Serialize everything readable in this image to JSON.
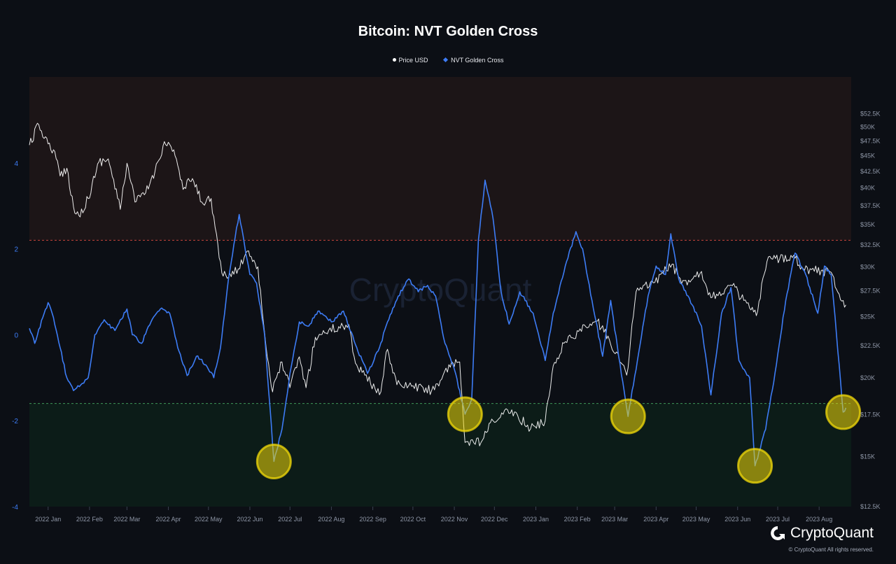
{
  "chart_data": {
    "type": "line",
    "title": "Bitcoin: NVT Golden Cross",
    "legend_placement": "top-center",
    "series": [
      {
        "name": "Price USD",
        "axis": "right",
        "color": "#ffffff",
        "points": [
          [
            "2021-12-18",
            46800
          ],
          [
            "2021-12-25",
            50400
          ],
          [
            "2022-01-01",
            47000
          ],
          [
            "2022-01-05",
            46000
          ],
          [
            "2022-01-10",
            41800
          ],
          [
            "2022-01-15",
            43000
          ],
          [
            "2022-01-21",
            36500
          ],
          [
            "2022-01-24",
            36200
          ],
          [
            "2022-01-31",
            38500
          ],
          [
            "2022-02-08",
            44000
          ],
          [
            "2022-02-15",
            44500
          ],
          [
            "2022-02-24",
            37000
          ],
          [
            "2022-03-01",
            43800
          ],
          [
            "2022-03-07",
            38000
          ],
          [
            "2022-03-15",
            39300
          ],
          [
            "2022-03-22",
            42500
          ],
          [
            "2022-03-29",
            47400
          ],
          [
            "2022-04-05",
            46000
          ],
          [
            "2022-04-12",
            39800
          ],
          [
            "2022-04-19",
            41400
          ],
          [
            "2022-04-26",
            38000
          ],
          [
            "2022-05-03",
            38500
          ],
          [
            "2022-05-09",
            31000
          ],
          [
            "2022-05-12",
            29000
          ],
          [
            "2022-05-20",
            29200
          ],
          [
            "2022-05-31",
            31800
          ],
          [
            "2022-06-07",
            30000
          ],
          [
            "2022-06-13",
            22500
          ],
          [
            "2022-06-18",
            19000
          ],
          [
            "2022-06-25",
            21200
          ],
          [
            "2022-07-01",
            19300
          ],
          [
            "2022-07-08",
            21600
          ],
          [
            "2022-07-13",
            19300
          ],
          [
            "2022-07-20",
            23200
          ],
          [
            "2022-07-30",
            23800
          ],
          [
            "2022-08-14",
            24300
          ],
          [
            "2022-08-19",
            21100
          ],
          [
            "2022-08-26",
            20200
          ],
          [
            "2022-09-06",
            18800
          ],
          [
            "2022-09-12",
            22200
          ],
          [
            "2022-09-19",
            19500
          ],
          [
            "2022-09-30",
            19400
          ],
          [
            "2022-10-15",
            19100
          ],
          [
            "2022-10-29",
            20800
          ],
          [
            "2022-11-05",
            21200
          ],
          [
            "2022-11-09",
            15800
          ],
          [
            "2022-11-21",
            15800
          ],
          [
            "2022-11-30",
            17100
          ],
          [
            "2022-12-14",
            17800
          ],
          [
            "2022-12-28",
            16600
          ],
          [
            "2023-01-08",
            17100
          ],
          [
            "2023-01-14",
            20900
          ],
          [
            "2023-01-22",
            22700
          ],
          [
            "2023-02-02",
            23700
          ],
          [
            "2023-02-16",
            24600
          ],
          [
            "2023-02-25",
            23000
          ],
          [
            "2023-03-10",
            20200
          ],
          [
            "2023-03-17",
            27400
          ],
          [
            "2023-03-30",
            28300
          ],
          [
            "2023-04-13",
            30300
          ],
          [
            "2023-04-20",
            28200
          ],
          [
            "2023-05-05",
            29500
          ],
          [
            "2023-05-12",
            26800
          ],
          [
            "2023-05-28",
            28000
          ],
          [
            "2023-06-10",
            25800
          ],
          [
            "2023-06-15",
            25100
          ],
          [
            "2023-06-23",
            30600
          ],
          [
            "2023-07-13",
            31300
          ],
          [
            "2023-07-20",
            29800
          ],
          [
            "2023-08-10",
            29400
          ],
          [
            "2023-08-17",
            26600
          ],
          [
            "2023-08-21",
            26100
          ]
        ]
      },
      {
        "name": "NVT Golden Cross",
        "axis": "left",
        "color": "#3d7cf5",
        "points": [
          [
            "2021-12-18",
            0.15
          ],
          [
            "2021-12-22",
            -0.2
          ],
          [
            "2021-12-28",
            0.4
          ],
          [
            "2022-01-01",
            0.75
          ],
          [
            "2022-01-04",
            0.5
          ],
          [
            "2022-01-10",
            -0.3
          ],
          [
            "2022-01-15",
            -1.0
          ],
          [
            "2022-01-20",
            -1.3
          ],
          [
            "2022-01-31",
            -1.0
          ],
          [
            "2022-02-05",
            0.0
          ],
          [
            "2022-02-12",
            0.35
          ],
          [
            "2022-02-20",
            0.1
          ],
          [
            "2022-03-01",
            0.6
          ],
          [
            "2022-03-05",
            0.0
          ],
          [
            "2022-03-12",
            -0.2
          ],
          [
            "2022-03-19",
            0.3
          ],
          [
            "2022-03-26",
            0.6
          ],
          [
            "2022-04-02",
            0.5
          ],
          [
            "2022-04-08",
            -0.3
          ],
          [
            "2022-04-15",
            -0.95
          ],
          [
            "2022-04-22",
            -0.5
          ],
          [
            "2022-04-29",
            -0.7
          ],
          [
            "2022-05-05",
            -1.0
          ],
          [
            "2022-05-10",
            -0.3
          ],
          [
            "2022-05-16",
            1.3
          ],
          [
            "2022-05-20",
            2.1
          ],
          [
            "2022-05-24",
            2.8
          ],
          [
            "2022-06-01",
            1.4
          ],
          [
            "2022-06-06",
            1.2
          ],
          [
            "2022-06-12",
            0.0
          ],
          [
            "2022-06-19",
            -2.95
          ],
          [
            "2022-06-25",
            -2.2
          ],
          [
            "2022-07-01",
            -0.9
          ],
          [
            "2022-07-08",
            0.3
          ],
          [
            "2022-07-15",
            0.2
          ],
          [
            "2022-07-22",
            0.55
          ],
          [
            "2022-08-01",
            0.3
          ],
          [
            "2022-08-10",
            0.55
          ],
          [
            "2022-08-20",
            -0.3
          ],
          [
            "2022-08-28",
            -0.9
          ],
          [
            "2022-09-06",
            -0.3
          ],
          [
            "2022-09-12",
            0.3
          ],
          [
            "2022-09-20",
            0.9
          ],
          [
            "2022-09-28",
            1.3
          ],
          [
            "2022-10-05",
            1.0
          ],
          [
            "2022-10-12",
            1.15
          ],
          [
            "2022-10-18",
            0.9
          ],
          [
            "2022-10-25",
            -0.2
          ],
          [
            "2022-11-01",
            -0.8
          ],
          [
            "2022-11-09",
            -1.85
          ],
          [
            "2022-11-14",
            -1.5
          ],
          [
            "2022-11-19",
            2.2
          ],
          [
            "2022-11-24",
            3.6
          ],
          [
            "2022-11-30",
            2.7
          ],
          [
            "2022-12-06",
            1.0
          ],
          [
            "2022-12-12",
            0.25
          ],
          [
            "2022-12-20",
            1.0
          ],
          [
            "2022-12-30",
            0.5
          ],
          [
            "2023-01-08",
            -0.6
          ],
          [
            "2023-01-14",
            0.5
          ],
          [
            "2023-01-23",
            1.6
          ],
          [
            "2023-01-31",
            2.4
          ],
          [
            "2023-02-05",
            2.0
          ],
          [
            "2023-02-12",
            0.8
          ],
          [
            "2023-02-20",
            -0.5
          ],
          [
            "2023-02-26",
            0.8
          ],
          [
            "2023-03-04",
            -0.5
          ],
          [
            "2023-03-11",
            -1.9
          ],
          [
            "2023-03-18",
            -0.6
          ],
          [
            "2023-03-26",
            0.9
          ],
          [
            "2023-04-01",
            1.6
          ],
          [
            "2023-04-08",
            1.4
          ],
          [
            "2023-04-12",
            2.35
          ],
          [
            "2023-04-18",
            1.3
          ],
          [
            "2023-04-25",
            0.9
          ],
          [
            "2023-05-05",
            0.2
          ],
          [
            "2023-05-12",
            -1.4
          ],
          [
            "2023-05-20",
            0.5
          ],
          [
            "2023-05-27",
            1.1
          ],
          [
            "2023-06-02",
            -0.6
          ],
          [
            "2023-06-10",
            -1.0
          ],
          [
            "2023-06-14",
            -3.05
          ],
          [
            "2023-06-22",
            -2.2
          ],
          [
            "2023-06-30",
            -0.7
          ],
          [
            "2023-07-07",
            0.8
          ],
          [
            "2023-07-14",
            1.9
          ],
          [
            "2023-07-22",
            1.4
          ],
          [
            "2023-07-31",
            0.5
          ],
          [
            "2023-08-05",
            1.6
          ],
          [
            "2023-08-10",
            1.4
          ],
          [
            "2023-08-14",
            0.0
          ],
          [
            "2023-08-19",
            -1.8
          ],
          [
            "2023-08-21",
            -1.7
          ]
        ]
      }
    ],
    "left_axis": {
      "ticks": [
        "4",
        "2",
        "0",
        "-2",
        "-4"
      ],
      "values": [
        4,
        2,
        0,
        -2,
        -4
      ],
      "range": [
        -4,
        6
      ]
    },
    "right_axis": {
      "scale": "log",
      "range": [
        12500,
        60000
      ],
      "ticks": [
        "$52.5K",
        "$50K",
        "$47.5K",
        "$45K",
        "$42.5K",
        "$40K",
        "$37.5K",
        "$35K",
        "$32.5K",
        "$30K",
        "$27.5K",
        "$25K",
        "$22.5K",
        "$20K",
        "$17.5K",
        "$15K",
        "$12.5K"
      ],
      "values": [
        52500,
        50000,
        47500,
        45000,
        42500,
        40000,
        37500,
        35000,
        32500,
        30000,
        27500,
        25000,
        22500,
        20000,
        17500,
        15000,
        12500
      ]
    },
    "x_axis": {
      "range": [
        "2021-12-18",
        "2023-08-25"
      ],
      "ticks": [
        "2022 Jan",
        "2022 Feb",
        "2022 Mar",
        "2022 Apr",
        "2022 May",
        "2022 Jun",
        "2022 Jul",
        "2022 Aug",
        "2022 Sep",
        "2022 Oct",
        "2022 Nov",
        "2022 Dec",
        "2023 Jan",
        "2023 Feb",
        "2023 Mar",
        "2023 Apr",
        "2023 May",
        "2023 Jun",
        "2023 Jul",
        "2023 Aug"
      ],
      "tick_dates": [
        "2022-01-01",
        "2022-02-01",
        "2022-03-01",
        "2022-04-01",
        "2022-05-01",
        "2022-06-01",
        "2022-07-01",
        "2022-08-01",
        "2022-09-01",
        "2022-10-01",
        "2022-11-01",
        "2022-12-01",
        "2023-01-01",
        "2023-02-01",
        "2023-03-01",
        "2023-04-01",
        "2023-05-01",
        "2023-06-01",
        "2023-07-01",
        "2023-08-01"
      ]
    },
    "thresholds": [
      {
        "value": 2.2,
        "color": "#c8463c",
        "style": "dashed",
        "zone": "above",
        "zone_color": "#1c1517"
      },
      {
        "value": -1.6,
        "color": "#3f9a5a",
        "style": "dashed",
        "zone": "below",
        "zone_color": "#0c1c18"
      }
    ],
    "highlights": [
      {
        "date": "2022-06-19",
        "value": -2.95
      },
      {
        "date": "2022-11-09",
        "value": -1.85
      },
      {
        "date": "2023-03-11",
        "value": -1.9
      },
      {
        "date": "2023-06-14",
        "value": -3.05
      },
      {
        "date": "2023-08-19",
        "value": -1.8
      }
    ],
    "highlight_color": "#f1d90a",
    "grid": false
  },
  "watermark": "CryptoQuant",
  "brand": {
    "name": "CryptoQuant",
    "copyright": "© CryptoQuant All rights reserved."
  }
}
